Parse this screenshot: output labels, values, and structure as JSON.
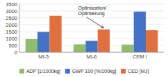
{
  "chart_data": {
    "type": "bar",
    "categories": [
      "MI-5",
      "MI-6",
      "CEM I"
    ],
    "series": [
      {
        "name": "ADP [1/1000kg]",
        "color": "#8fbc6e",
        "values": [
          950,
          580,
          560
        ]
      },
      {
        "name": "GWP 100 [%/100kg]",
        "color": "#4472c4",
        "values": [
          1480,
          830,
          2960
        ]
      },
      {
        "name": "CED [MJ]",
        "color": "#e07040",
        "values": [
          2660,
          1660,
          1600
        ]
      }
    ],
    "ylim": [
      0,
      3500
    ],
    "yticks": [
      0,
      500,
      1000,
      1500,
      2000,
      2500,
      3000,
      3500
    ],
    "grid": true,
    "legend": "bottom",
    "annotation": "Optimization/\nOptimierung"
  }
}
